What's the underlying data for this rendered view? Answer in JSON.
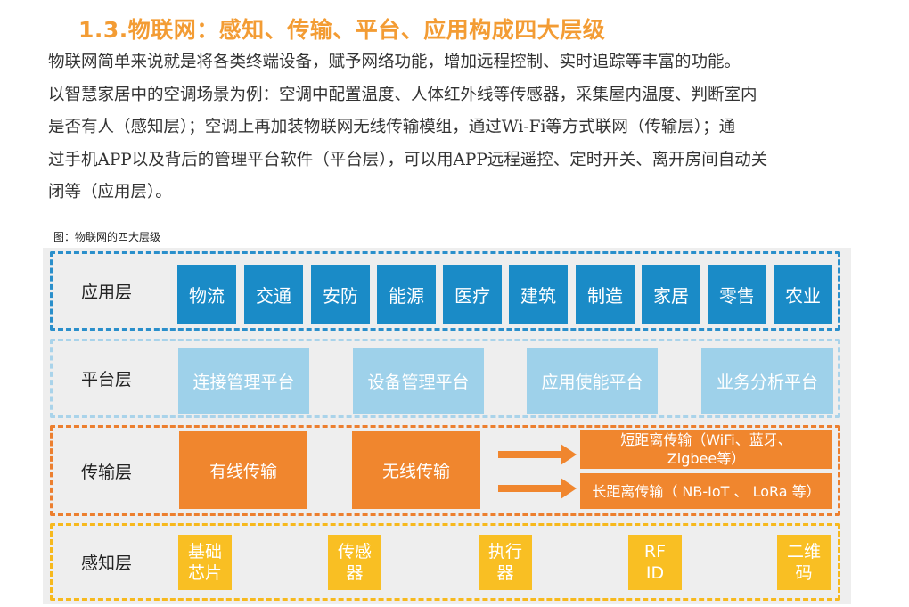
{
  "title": "1.3.物联网：感知、传输、平台、应用构成四大层级",
  "paragraph": [
    "物联网简单来说就是将各类终端设备，赋予网络功能，增加远程控制、实时追踪等丰富的功能。",
    "以智慧家居中的空调场景为例：空调中配置温度、人体红外线等传感器，采集屋内温度、判断室内",
    "是否有人（感知层）；空调上再加装物联网无线传输模组，通过Wi-Fi等方式联网（传输层）；通",
    "过手机APP以及背后的管理平台软件（平台层），可以用APP远程遥控、定时开关、离开房间自动关",
    "闭等（应用层）。"
  ],
  "caption": "图：物联网的四大层级",
  "colors": {
    "title": "#f39c34",
    "application": "#1a8bc7",
    "platform": "#9ed1ea",
    "transmission": "#f0862e",
    "perception": "#f9bf23"
  },
  "layers": {
    "application": {
      "name": "应用层",
      "items": [
        "物流",
        "交通",
        "安防",
        "能源",
        "医疗",
        "建筑",
        "制造",
        "家居",
        "零售",
        "农业"
      ]
    },
    "platform": {
      "name": "平台层",
      "items": [
        "连接管理平台",
        "设备管理平台",
        "应用使能平台",
        "业务分析平台"
      ]
    },
    "transmission": {
      "name": "传输层",
      "items": [
        "有线传输",
        "无线传输"
      ],
      "short_range": "短距离传输（WiFi、蓝牙、Zigbee等）",
      "long_range": "长距离传输（ NB-IoT 、 LoRa 等）"
    },
    "perception": {
      "name": "感知层",
      "items": [
        "基础\n芯片",
        "传感\n器",
        "执行\n器",
        "RF\nID",
        "二维\n码"
      ]
    }
  }
}
